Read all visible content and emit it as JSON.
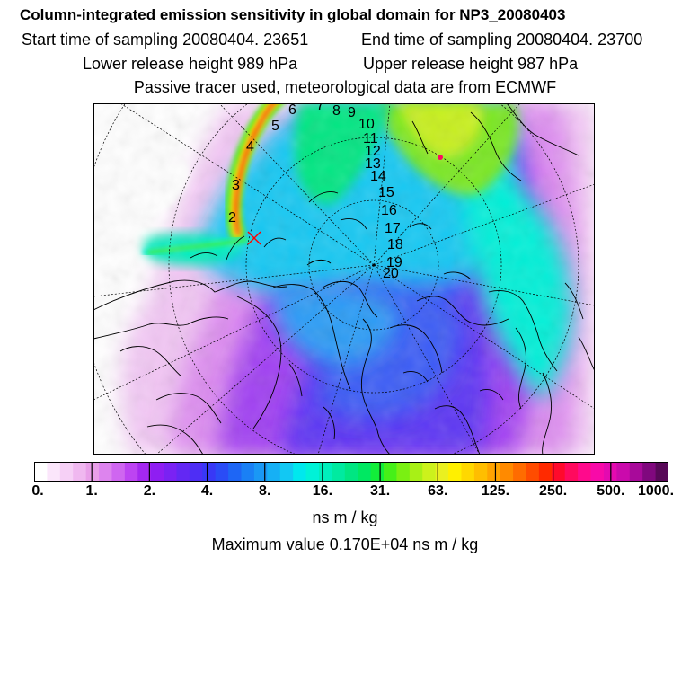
{
  "title": "Column-integrated emission sensitivity in global domain for NP3_20080403",
  "sampling": {
    "start": "Start time of sampling 20080404. 23651",
    "end": "End time of sampling 20080404. 23700"
  },
  "release": {
    "lower": "Lower release height  989 hPa",
    "upper": "Upper release height  987 hPa"
  },
  "subtitle": "Passive tracer used, meteorological data are from ECMWF",
  "trajectory_labels": [
    "2",
    "3",
    "4",
    "5",
    "6",
    "7",
    "8",
    "9",
    "10",
    "11",
    "12",
    "13",
    "14",
    "15",
    "16",
    "17",
    "18",
    "19",
    "20"
  ],
  "colorbar": {
    "ticks": [
      "0.",
      "1.",
      "2.",
      "4.",
      "8.",
      "16.",
      "31.",
      "63.",
      "125.",
      "250.",
      "500.",
      "1000."
    ],
    "colors": [
      "#ffffff",
      "#fbe6fb",
      "#f6d0f6",
      "#f0b8f0",
      "#e99fe9",
      "#dd84ee",
      "#cf66f0",
      "#bd44f2",
      "#a528f0",
      "#8f1ef2",
      "#7a22f3",
      "#6328f3",
      "#4e2ef5",
      "#3838f6",
      "#2a4cf6",
      "#1e66f5",
      "#1a80f5",
      "#1a98f5",
      "#16b0f5",
      "#12c8f3",
      "#00e8ee",
      "#00f2d8",
      "#00eebc",
      "#00eaa0",
      "#00e682",
      "#00e862",
      "#12ee3a",
      "#46f018",
      "#7af012",
      "#a8f016",
      "#ccf21c",
      "#eaf020",
      "#fff000",
      "#ffd800",
      "#ffbe00",
      "#ffa400",
      "#ff8a00",
      "#ff6c00",
      "#ff4c00",
      "#ff2a00",
      "#ff0a2c",
      "#ff0a5e",
      "#ff0a8c",
      "#f80aa8",
      "#e40ab0",
      "#ca0aac",
      "#a80a9a",
      "#80087e",
      "#580858"
    ],
    "units": "ns m / kg"
  },
  "max_value": "Maximum value  0.170E+04 ns m / kg",
  "colors": {
    "trajectory_marker": "#ff0000",
    "frame": "#000000"
  }
}
